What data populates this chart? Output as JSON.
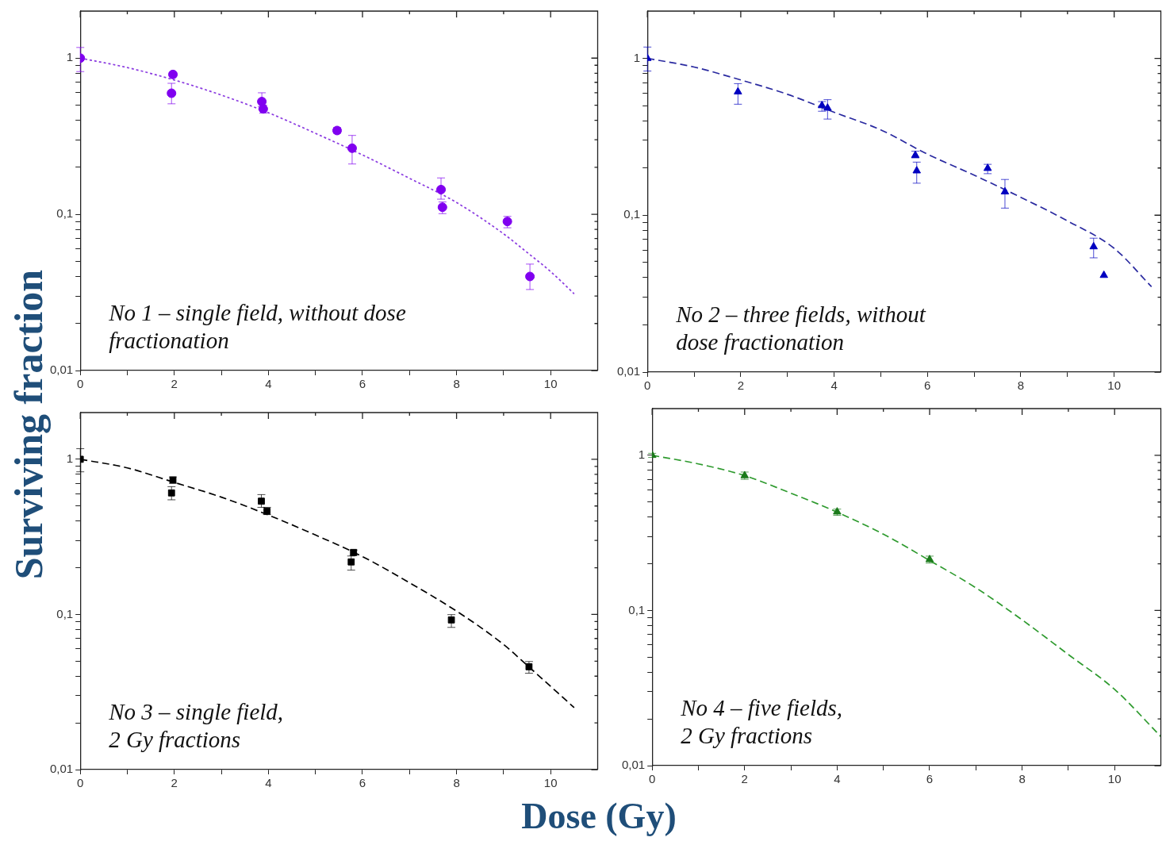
{
  "chart_data": [
    {
      "type": "scatter",
      "ylabel": "Surviving fraction",
      "log": "y",
      "grid": false,
      "legend": false,
      "xlim": [
        0,
        11
      ],
      "ylim": [
        0.01,
        2
      ],
      "xticks": [
        0,
        {
          "value": 1,
          "label": null
        },
        2,
        {
          "value": 3,
          "label": null
        },
        4,
        {
          "value": 5,
          "label": null
        },
        6,
        {
          "value": 7,
          "label": null
        },
        8,
        {
          "value": 9,
          "label": null
        },
        10
      ],
      "yticks": [
        {
          "value": 0.01,
          "label": "0,01"
        },
        {
          "value": 0.02,
          "label": null
        },
        {
          "value": 0.03,
          "label": null
        },
        {
          "value": 0.04,
          "label": null
        },
        {
          "value": 0.05,
          "label": null
        },
        {
          "value": 0.06,
          "label": null
        },
        {
          "value": 0.07,
          "label": null
        },
        {
          "value": 0.08,
          "label": null
        },
        {
          "value": 0.09,
          "label": null
        },
        {
          "value": 0.1,
          "label": "0,1"
        },
        {
          "value": 0.2,
          "label": null
        },
        {
          "value": 0.3,
          "label": null
        },
        {
          "value": 0.4,
          "label": null
        },
        {
          "value": 0.5,
          "label": null
        },
        {
          "value": 0.6,
          "label": null
        },
        {
          "value": 0.7,
          "label": null
        },
        {
          "value": 0.8,
          "label": null
        },
        {
          "value": 0.9,
          "label": null
        },
        {
          "value": 1,
          "label": "1"
        }
      ],
      "annotations": [
        "No 1 – single field, without dose fractionation"
      ],
      "series": [
        {
          "color": "#8000f0",
          "marker": "circle",
          "x": [
            0,
            1.97,
            1.94,
            3.86,
            3.89,
            5.46,
            5.78,
            7.67,
            7.7,
            9.08,
            9.56
          ],
          "values": [
            1,
            0.786,
            0.596,
            0.527,
            0.473,
            0.344,
            0.265,
            0.144,
            0.111,
            0.09,
            0.04
          ],
          "errors": [
            [
              0.82,
              1.17
            ],
            [
              0.76,
              0.81
            ],
            [
              0.51,
              0.69
            ],
            [
              0.49,
              0.6
            ],
            [
              0.445,
              0.5
            ],
            [
              0.33,
              0.36
            ],
            [
              0.21,
              0.32
            ],
            [
              0.125,
              0.171
            ],
            [
              0.101,
              0.12
            ],
            [
              0.082,
              0.097
            ],
            [
              0.033,
              0.048
            ]
          ]
        },
        {
          "type": "line",
          "color": "#8a3ae0",
          "line_style": "dotted",
          "x": [
            0,
            1,
            2,
            3,
            4,
            5,
            6,
            7,
            8,
            9,
            9.5,
            10,
            10.5
          ],
          "values": [
            1,
            0.87,
            0.724,
            0.58,
            0.447,
            0.33,
            0.24,
            0.17,
            0.119,
            0.075,
            0.057,
            0.043,
            0.031
          ]
        }
      ]
    },
    {
      "type": "scatter",
      "log": "y",
      "grid": false,
      "legend": false,
      "xlim": [
        0,
        11
      ],
      "ylim": [
        0.01,
        2
      ],
      "xticks": [
        0,
        {
          "value": 1,
          "label": null
        },
        2,
        {
          "value": 3,
          "label": null
        },
        4,
        {
          "value": 5,
          "label": null
        },
        6,
        {
          "value": 7,
          "label": null
        },
        8,
        {
          "value": 9,
          "label": null
        },
        10
      ],
      "yticks": [
        {
          "value": 0.01,
          "label": "0,01"
        },
        {
          "value": 0.02,
          "label": null
        },
        {
          "value": 0.03,
          "label": null
        },
        {
          "value": 0.04,
          "label": null
        },
        {
          "value": 0.05,
          "label": null
        },
        {
          "value": 0.06,
          "label": null
        },
        {
          "value": 0.07,
          "label": null
        },
        {
          "value": 0.08,
          "label": null
        },
        {
          "value": 0.09,
          "label": null
        },
        {
          "value": 0.1,
          "label": "0,1"
        },
        {
          "value": 0.2,
          "label": null
        },
        {
          "value": 0.3,
          "label": null
        },
        {
          "value": 0.4,
          "label": null
        },
        {
          "value": 0.5,
          "label": null
        },
        {
          "value": 0.6,
          "label": null
        },
        {
          "value": 0.7,
          "label": null
        },
        {
          "value": 0.8,
          "label": null
        },
        {
          "value": 0.9,
          "label": null
        },
        {
          "value": 1,
          "label": "1"
        }
      ],
      "annotations": [
        "No 2 – three fields, without dose fractionation"
      ],
      "series": [
        {
          "color": "#0000c0",
          "marker": "triangle",
          "x": [
            0,
            1.94,
            3.74,
            3.86,
            5.74,
            5.77,
            7.29,
            7.66,
            9.56,
            9.78
          ],
          "values": [
            1,
            0.612,
            0.5,
            0.482,
            0.241,
            0.192,
            0.199,
            0.141,
            0.063,
            0.0414
          ],
          "errors": [
            [
              0.83,
              1.18
            ],
            [
              0.51,
              0.69
            ],
            [
              0.46,
              0.53
            ],
            [
              0.41,
              0.545
            ],
            [
              0.232,
              0.256
            ],
            [
              0.16,
              0.218
            ],
            [
              0.184,
              0.211
            ],
            [
              0.111,
              0.169
            ],
            [
              0.0535,
              0.0714
            ],
            null
          ]
        },
        {
          "type": "line",
          "color": "#2a2aa0",
          "line_style": "dashed",
          "x": [
            0,
            1,
            2,
            3,
            4,
            5,
            6,
            7,
            8,
            9,
            10,
            10.8
          ],
          "values": [
            1,
            0.88,
            0.728,
            0.59,
            0.453,
            0.35,
            0.245,
            0.18,
            0.13,
            0.092,
            0.0615,
            0.035
          ]
        }
      ]
    },
    {
      "type": "scatter",
      "log": "y",
      "grid": false,
      "legend": false,
      "xlim": [
        0,
        11
      ],
      "ylim": [
        0.01,
        2
      ],
      "xticks": [
        0,
        {
          "value": 1,
          "label": null
        },
        2,
        {
          "value": 3,
          "label": null
        },
        4,
        {
          "value": 5,
          "label": null
        },
        6,
        {
          "value": 7,
          "label": null
        },
        8,
        {
          "value": 9,
          "label": null
        },
        10
      ],
      "yticks": [
        {
          "value": 0.01,
          "label": "0,01"
        },
        {
          "value": 0.02,
          "label": null
        },
        {
          "value": 0.03,
          "label": null
        },
        {
          "value": 0.04,
          "label": null
        },
        {
          "value": 0.05,
          "label": null
        },
        {
          "value": 0.06,
          "label": null
        },
        {
          "value": 0.07,
          "label": null
        },
        {
          "value": 0.08,
          "label": null
        },
        {
          "value": 0.09,
          "label": null
        },
        {
          "value": 0.1,
          "label": "0,1"
        },
        {
          "value": 0.2,
          "label": null
        },
        {
          "value": 0.3,
          "label": null
        },
        {
          "value": 0.4,
          "label": null
        },
        {
          "value": 0.5,
          "label": null
        },
        {
          "value": 0.6,
          "label": null
        },
        {
          "value": 0.7,
          "label": null
        },
        {
          "value": 0.8,
          "label": null
        },
        {
          "value": 0.9,
          "label": null
        },
        {
          "value": 1,
          "label": "1"
        }
      ],
      "annotations": [
        "No 3 – single field, 2 Gy fractions"
      ],
      "series": [
        {
          "color": "#000000",
          "marker": "square",
          "x": [
            0,
            1.97,
            1.94,
            3.85,
            3.97,
            5.81,
            5.76,
            7.89,
            9.54
          ],
          "values": [
            1,
            0.735,
            0.607,
            0.537,
            0.463,
            0.251,
            0.218,
            0.0922,
            0.046
          ],
          "errors": [
            [
              0.83,
              1.17
            ],
            [
              0.7,
              0.77
            ],
            [
              0.548,
              0.666
            ],
            [
              0.49,
              0.592
            ],
            [
              0.44,
              0.49
            ],
            [
              0.24,
              0.26
            ],
            [
              0.193,
              0.238
            ],
            [
              0.0825,
              0.0997
            ],
            [
              0.0418,
              0.0497
            ]
          ]
        },
        {
          "type": "line",
          "color": "#000000",
          "line_style": "dashed",
          "x": [
            0,
            1,
            2,
            3,
            4,
            5,
            6,
            7,
            8,
            9,
            9.5,
            10.5
          ],
          "values": [
            1,
            0.88,
            0.709,
            0.57,
            0.437,
            0.325,
            0.236,
            0.16,
            0.105,
            0.064,
            0.047,
            0.0251
          ]
        }
      ]
    },
    {
      "type": "scatter",
      "xlabel": "Dose (Gy)",
      "log": "y",
      "grid": false,
      "legend": false,
      "xlim": [
        0,
        11
      ],
      "ylim": [
        0.01,
        2
      ],
      "xticks": [
        0,
        {
          "value": 1,
          "label": null
        },
        2,
        {
          "value": 3,
          "label": null
        },
        4,
        {
          "value": 5,
          "label": null
        },
        6,
        {
          "value": 7,
          "label": null
        },
        8,
        {
          "value": 9,
          "label": null
        },
        10
      ],
      "yticks": [
        {
          "value": 0.01,
          "label": "0,01"
        },
        {
          "value": 0.02,
          "label": null
        },
        {
          "value": 0.03,
          "label": null
        },
        {
          "value": 0.04,
          "label": null
        },
        {
          "value": 0.05,
          "label": null
        },
        {
          "value": 0.06,
          "label": null
        },
        {
          "value": 0.07,
          "label": null
        },
        {
          "value": 0.08,
          "label": null
        },
        {
          "value": 0.09,
          "label": null
        },
        {
          "value": 0.1,
          "label": "0,1"
        },
        {
          "value": 0.2,
          "label": null
        },
        {
          "value": 0.3,
          "label": null
        },
        {
          "value": 0.4,
          "label": null
        },
        {
          "value": 0.5,
          "label": null
        },
        {
          "value": 0.6,
          "label": null
        },
        {
          "value": 0.7,
          "label": null
        },
        {
          "value": 0.8,
          "label": null
        },
        {
          "value": 0.9,
          "label": null
        },
        {
          "value": 1,
          "label": "1"
        }
      ],
      "annotations": [
        "No 4 – five fields, 2 Gy fractions"
      ],
      "series": [
        {
          "color": "#1a7a1a",
          "marker": "triangle",
          "x": [
            0,
            2,
            4,
            6
          ],
          "values": [
            1,
            0.74,
            0.432,
            0.213
          ],
          "errors": [
            [
              0.97,
              1.03
            ],
            [
              0.7,
              0.78
            ],
            [
              0.41,
              0.45
            ],
            [
              0.202,
              0.224
            ]
          ]
        },
        {
          "type": "line",
          "color": "#2e9a2e",
          "line_style": "dashed",
          "x": [
            0,
            1,
            2,
            3,
            4,
            5,
            6,
            7,
            8,
            9,
            10,
            11
          ],
          "values": [
            1,
            0.88,
            0.74,
            0.57,
            0.43,
            0.31,
            0.21,
            0.14,
            0.087,
            0.052,
            0.031,
            0.0154
          ]
        }
      ]
    }
  ]
}
